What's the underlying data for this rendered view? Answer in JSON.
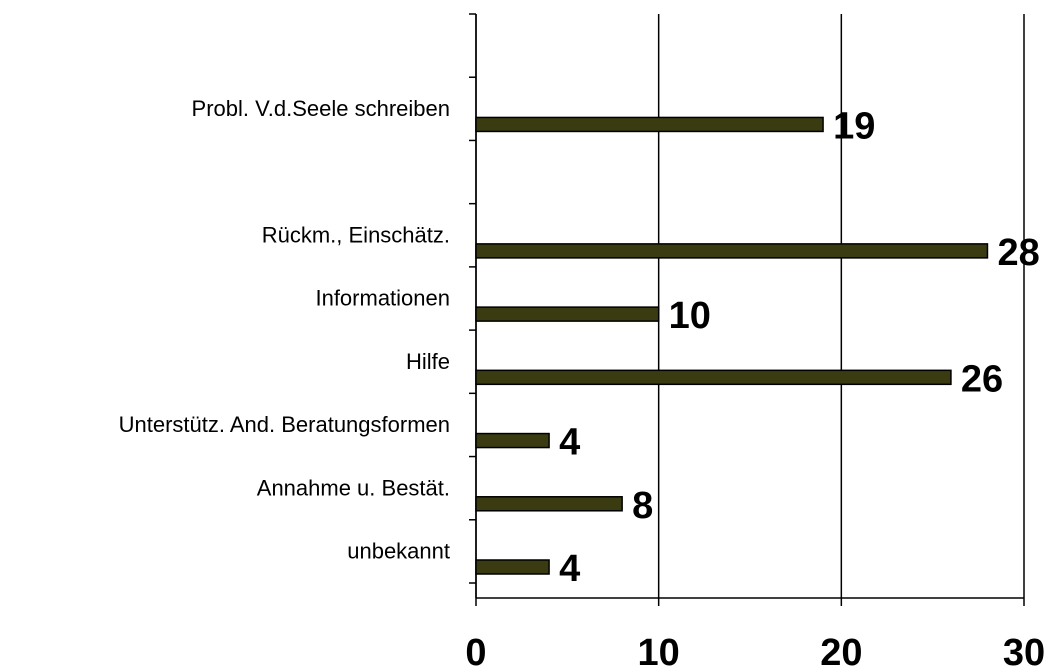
{
  "chart_data": {
    "type": "barh",
    "categories": [
      null,
      "Probl. V.d.Seele schreiben",
      null,
      "Rückm., Einschätz.",
      "Informationen",
      "Hilfe",
      "Unterstütz. And. Beratungsformen",
      "Annahme u. Bestät.",
      "unbekannt"
    ],
    "values": [
      null,
      19,
      null,
      28,
      10,
      26,
      4,
      8,
      4
    ],
    "color": "#3b3b12",
    "xlim": [
      0,
      30
    ],
    "xticks": [
      0,
      10,
      20,
      30
    ],
    "grid": true
  }
}
